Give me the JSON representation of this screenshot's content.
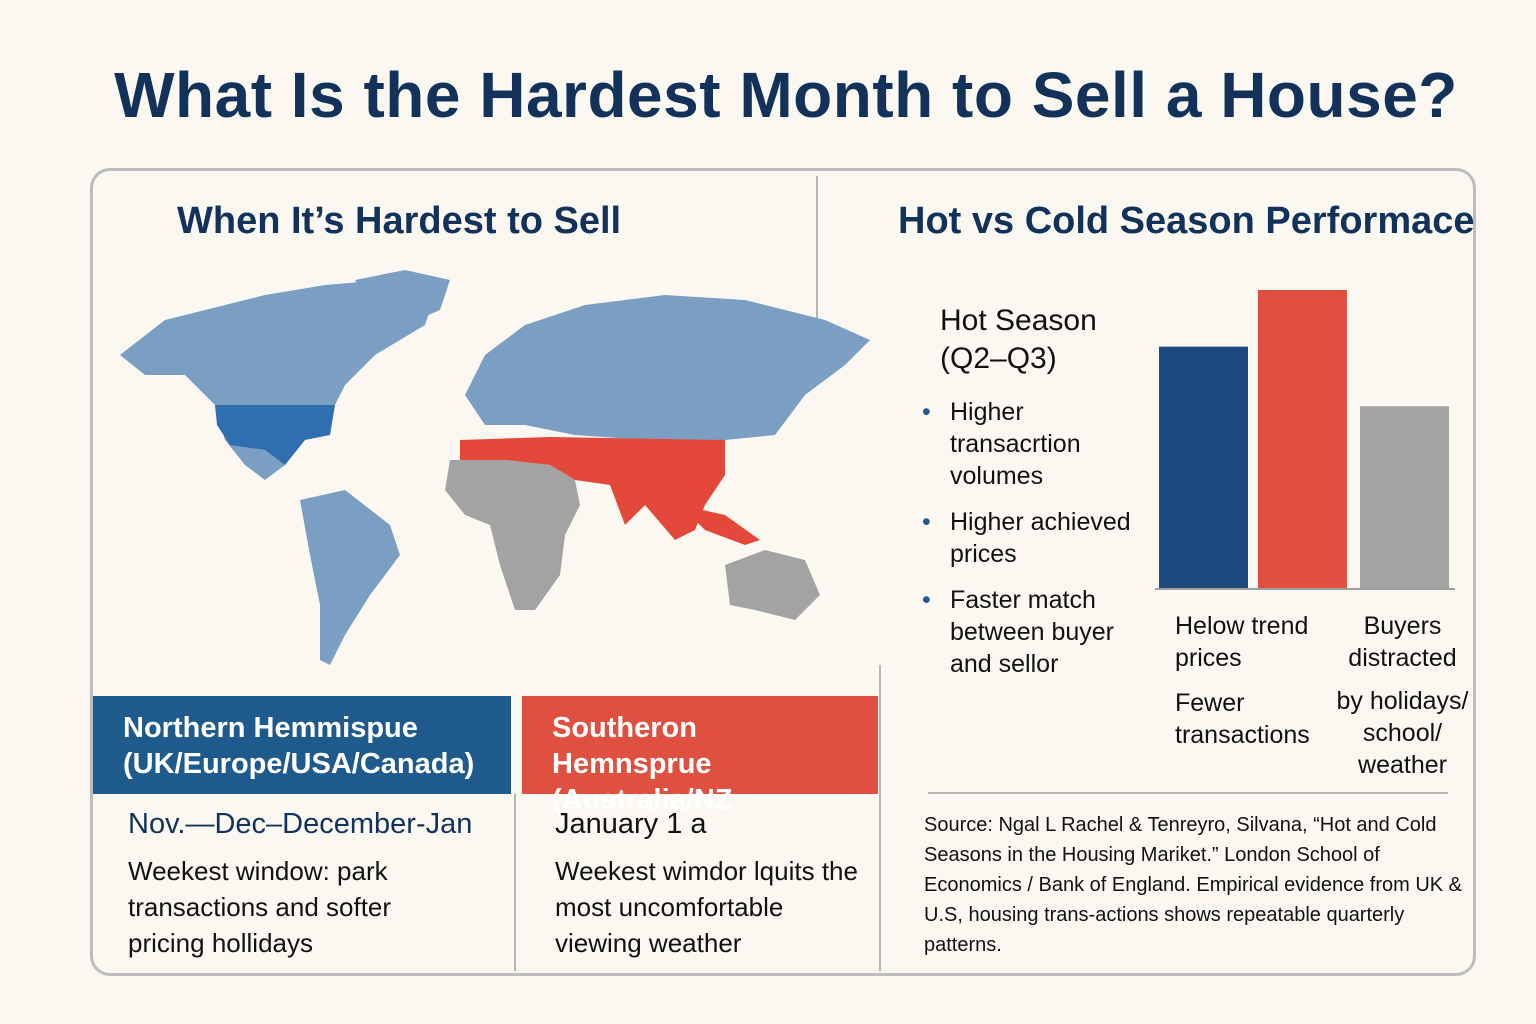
{
  "title": "What Is the Hardest Month to Sell a House?",
  "left": {
    "heading": "When It’s Hardest to Sell",
    "northern": {
      "label_line1": "Northern Hemmispue",
      "label_line2": "(UK/Europe/USA/Canada)",
      "months": "Nov.—Dec–December-Jan",
      "description": "Weekest window: park transactions and softer pricing  hollidays",
      "color": "#1f5a8c"
    },
    "southern": {
      "label_line1": "Southeron Hemnsprue",
      "label_line2": "(Australia/NZ",
      "months": "January 1 a",
      "description": "Weekest wimdor lquits the most uncomfortable viewing weather",
      "color": "#e05040"
    },
    "map_colors": {
      "base": "#7b9fc2",
      "usa": "#2f6fb0",
      "highlight": "#e3483a",
      "neutral": "#a3a3a3"
    }
  },
  "right": {
    "heading": "Hot vs Cold Season Performace",
    "hot_season_line1": "Hot Season",
    "hot_season_line2": "(Q2–Q3)",
    "bullets": [
      "Higher transacrtion volumes",
      "Higher achieved prices",
      "Faster match between buyer and sellor"
    ],
    "label_left_1": "Helow trend prices",
    "label_left_2": "Fewer transactions",
    "label_right_1": "Buyers distracted",
    "label_right_2": "by holidays/ school/ weather",
    "source": "Source: Ngal L Rachel & Tenreyro, Silvana, “Hot and Cold Seasons in the Housing Mariket.” London School of Economics / Bank of England. Empirical evidence from UK & U.S, housing trans-actions shows repeatable quarterly patterns."
  },
  "chart_data": {
    "type": "bar",
    "categories": [
      "",
      "",
      ""
    ],
    "values": [
      81,
      100,
      61
    ],
    "colors": [
      "#1b4a7e",
      "#e04f40",
      "#a3a3a3"
    ],
    "grid": false
  }
}
